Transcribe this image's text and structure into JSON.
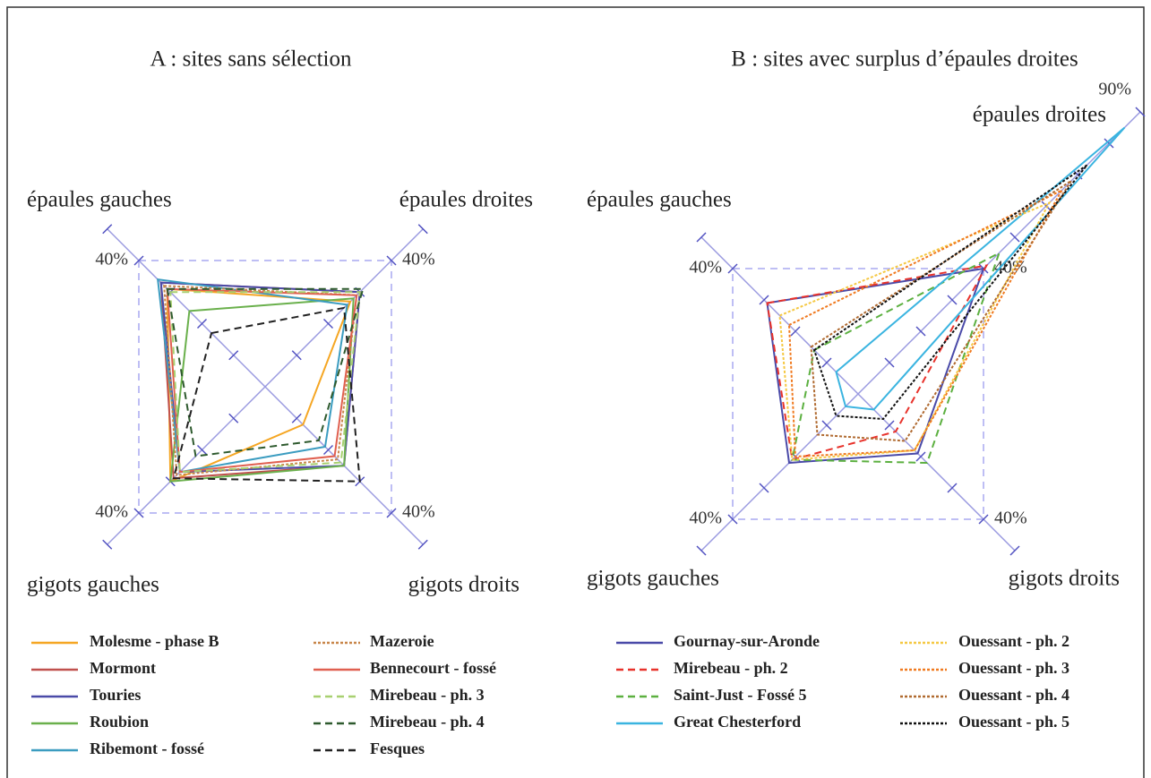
{
  "chart_data": [
    {
      "type": "radar",
      "title": "A : sites sans sélection",
      "axes": [
        "épaules gauches",
        "épaules droites",
        "gigots droits",
        "gigots gauches"
      ],
      "axis_lims": [
        [
          0,
          50
        ],
        [
          0,
          50
        ],
        [
          0,
          50
        ],
        [
          0,
          50
        ]
      ],
      "rticks": [
        10,
        20,
        30,
        40,
        50
      ],
      "rlabels": [
        {
          "value": 40,
          "label": "40%"
        }
      ],
      "grid_levels": [
        40
      ],
      "series": [
        {
          "name": "Molesme - phase B",
          "color": "#f5a623",
          "style": "solid",
          "values": [
            31,
            27,
            12,
            30
          ]
        },
        {
          "name": "Mormont",
          "color": "#c0504d",
          "style": "solid",
          "values": [
            33,
            30,
            25,
            29
          ]
        },
        {
          "name": "Touries",
          "color": "#4a4aa8",
          "style": "solid",
          "values": [
            33,
            30,
            25,
            27
          ]
        },
        {
          "name": "Roubion",
          "color": "#6ab04c",
          "style": "solid",
          "values": [
            24,
            28,
            25,
            30
          ]
        },
        {
          "name": "Ribemont - fossé",
          "color": "#3b9cc0",
          "style": "solid",
          "values": [
            34,
            26,
            19,
            27
          ]
        },
        {
          "name": "Mazeroie",
          "color": "#c8864a",
          "style": "dotted",
          "values": [
            32,
            29,
            23,
            28
          ]
        },
        {
          "name": "Bennecourt - fossé",
          "color": "#e06050",
          "style": "solid",
          "values": [
            31,
            29,
            22,
            27
          ]
        },
        {
          "name": "Mirebeau - ph. 3",
          "color": "#a8d070",
          "style": "dashed",
          "values": [
            30,
            30,
            24,
            27
          ]
        },
        {
          "name": "Mirebeau - ph. 4",
          "color": "#2e5a2e",
          "style": "dashed",
          "values": [
            31,
            31,
            17,
            22
          ]
        },
        {
          "name": "Fesques",
          "color": "#222222",
          "style": "dashed",
          "values": [
            17,
            25,
            30,
            29
          ]
        }
      ]
    },
    {
      "type": "radar",
      "title": "B : sites avec surplus d’épaules droites",
      "axes": [
        "épaules gauches",
        "épaules droites",
        "gigots droits",
        "gigots gauches"
      ],
      "axis_lims": [
        [
          0,
          50
        ],
        [
          0,
          90
        ],
        [
          0,
          50
        ],
        [
          0,
          50
        ]
      ],
      "rticks": [
        10,
        20,
        30,
        40,
        50,
        60,
        70,
        80,
        90
      ],
      "rlabels": [
        {
          "value": 40,
          "label": "40%"
        },
        {
          "value": 90,
          "label": "90%"
        }
      ],
      "grid_levels": [
        40
      ],
      "series": [
        {
          "name": "Gournay-sur-Aronde",
          "color": "#4a4aa8",
          "style": "solid",
          "values": [
            29,
            40,
            19,
            22
          ]
        },
        {
          "name": "Mirebeau - ph. 2",
          "color": "#e8322b",
          "style": "dashed",
          "values": [
            29,
            41,
            12,
            21
          ]
        },
        {
          "name": "Saint-Just - Fossé 5",
          "color": "#5cb040",
          "style": "dashed",
          "values": [
            14,
            45,
            22,
            21
          ]
        },
        {
          "name": "Great Chesterford",
          "color": "#3ab4e0",
          "style": "solid",
          "values": [
            7,
            85,
            5,
            4
          ]
        },
        {
          "name": "Ouessant - ph. 2",
          "color": "#f5c842",
          "style": "dotted",
          "values": [
            25,
            61,
            18,
            21
          ]
        },
        {
          "name": "Ouessant - ph. 3",
          "color": "#f07a20",
          "style": "dotted",
          "values": [
            22,
            65,
            18,
            20
          ]
        },
        {
          "name": "Ouessant - ph. 4",
          "color": "#b06a30",
          "style": "dotted",
          "values": [
            15,
            68,
            15,
            13
          ]
        },
        {
          "name": "Ouessant - ph. 5",
          "color": "#111111",
          "style": "dotted",
          "values": [
            14,
            73,
            8,
            7
          ]
        }
      ]
    }
  ]
}
